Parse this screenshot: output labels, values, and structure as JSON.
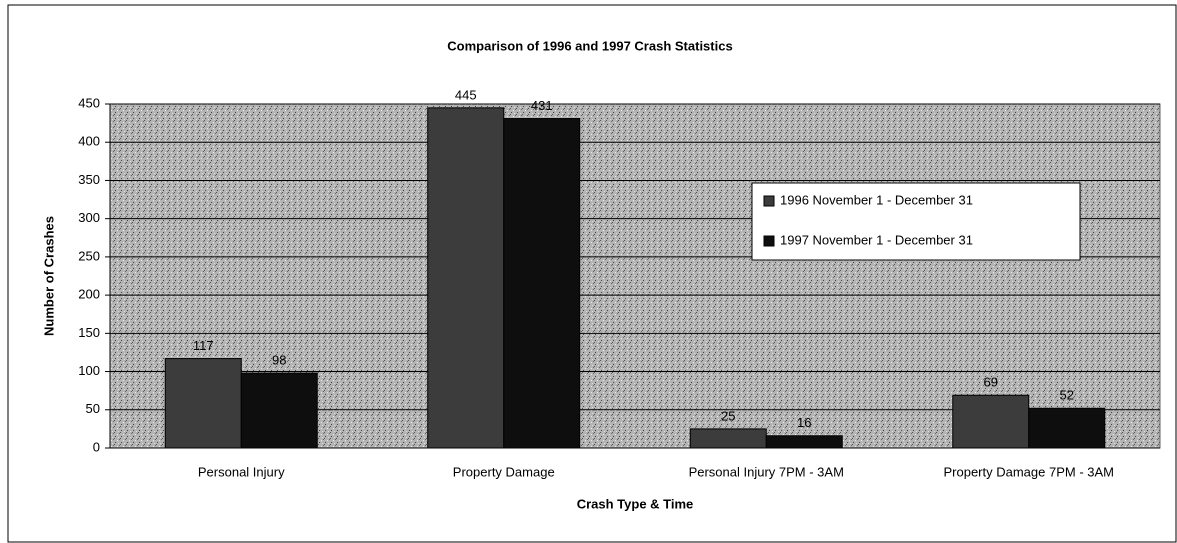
{
  "chart_data": {
    "type": "bar",
    "title": "Comparison of 1996 and 1997 Crash Statistics",
    "x_label": "Crash Type & Time",
    "y_label": "Number of Crashes",
    "categories": [
      "Personal Injury",
      "Property Damage",
      "Personal Injury  7PM - 3AM",
      "Property Damage 7PM - 3AM"
    ],
    "series": [
      {
        "name": "1996 November 1 - December 31",
        "color": "#3c3c3c",
        "values": [
          117,
          445,
          25,
          69
        ]
      },
      {
        "name": "1997 November 1 - December 31",
        "color": "#0e0e0e",
        "values": [
          98,
          431,
          16,
          52
        ]
      }
    ],
    "ylim": [
      0,
      450
    ],
    "yticks": [
      0,
      50,
      100,
      150,
      200,
      250,
      300,
      350,
      400,
      450
    ],
    "grid": true,
    "legend": "right"
  }
}
